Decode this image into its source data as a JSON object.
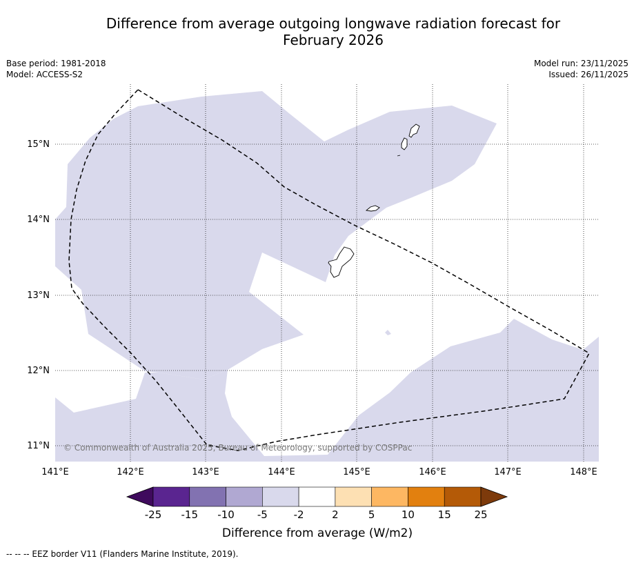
{
  "title_line1": "Difference from average outgoing longwave radiation forecast for",
  "title_line2": "February 2026",
  "base_period": "Base period: 1981-2018",
  "model": "Model: ACCESS-S2",
  "model_run": "Model run: 23/11/2025",
  "issued": "Issued: 26/11/2025",
  "copyright": "© Commonwealth of Australia 2025, Bureau of Meteorology, supported by COSPPac",
  "longitude_labels": [
    "141°E",
    "142°E",
    "143°E",
    "144°E",
    "145°E",
    "146°E",
    "147°E",
    "148°E"
  ],
  "latitude_labels": [
    "15°N",
    "14°N",
    "13°N",
    "12°N",
    "11°N"
  ],
  "colorbar": {
    "title": "Difference from average (W/m2)",
    "tick_labels": [
      "-25",
      "-15",
      "-10",
      "-5",
      "-2",
      "2",
      "5",
      "10",
      "15",
      "25"
    ],
    "colors": [
      "#3f0a5d",
      "#5a2590",
      "#8272b1",
      "#b0a8d2",
      "#d9d9ec",
      "#ffffff",
      "#fde0b3",
      "#fdb762",
      "#e2800f",
      "#b45a07",
      "#7d3a0b"
    ]
  },
  "footnote": "--  --  -- EEZ border V11 (Flanders Marine Institute, 2019)."
}
